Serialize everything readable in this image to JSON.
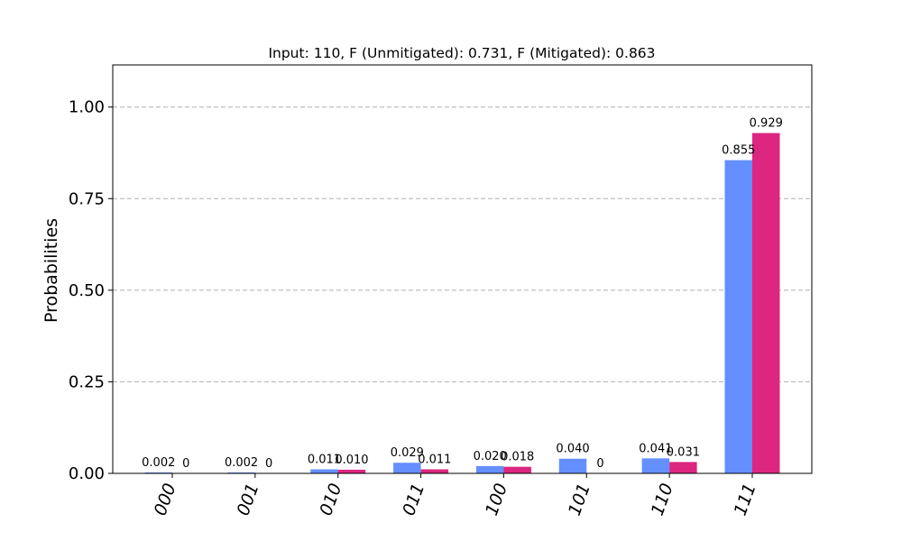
{
  "chart_data": {
    "type": "bar",
    "title": "Input: 110, F (Unmitigated): 0.731, F (Mitigated): 0.863",
    "xlabel": "",
    "ylabel": "Probabilities",
    "ylim": [
      0,
      1.115
    ],
    "yticks": [
      0,
      0.25,
      0.5,
      0.75,
      1.0
    ],
    "ytick_labels": [
      "0.00",
      "0.25",
      "0.50",
      "0.75",
      "1.00"
    ],
    "grid": "y-dashed",
    "categories": [
      "000",
      "001",
      "010",
      "011",
      "100",
      "101",
      "110",
      "111"
    ],
    "series": [
      {
        "color": "#648fff",
        "values": [
          0.002,
          0.002,
          0.011,
          0.029,
          0.02,
          0.04,
          0.041,
          0.855
        ],
        "labels": [
          "0.002",
          "0.002",
          "0.011",
          "0.029",
          "0.020",
          "0.040",
          "0.041",
          "0.855"
        ]
      },
      {
        "color": "#dc267f",
        "values": [
          0,
          0,
          0.01,
          0.011,
          0.018,
          0,
          0.031,
          0.929
        ],
        "labels": [
          "0",
          "0",
          "0.010",
          "0.011",
          "0.018",
          "0",
          "0.031",
          "0.929"
        ]
      }
    ]
  }
}
